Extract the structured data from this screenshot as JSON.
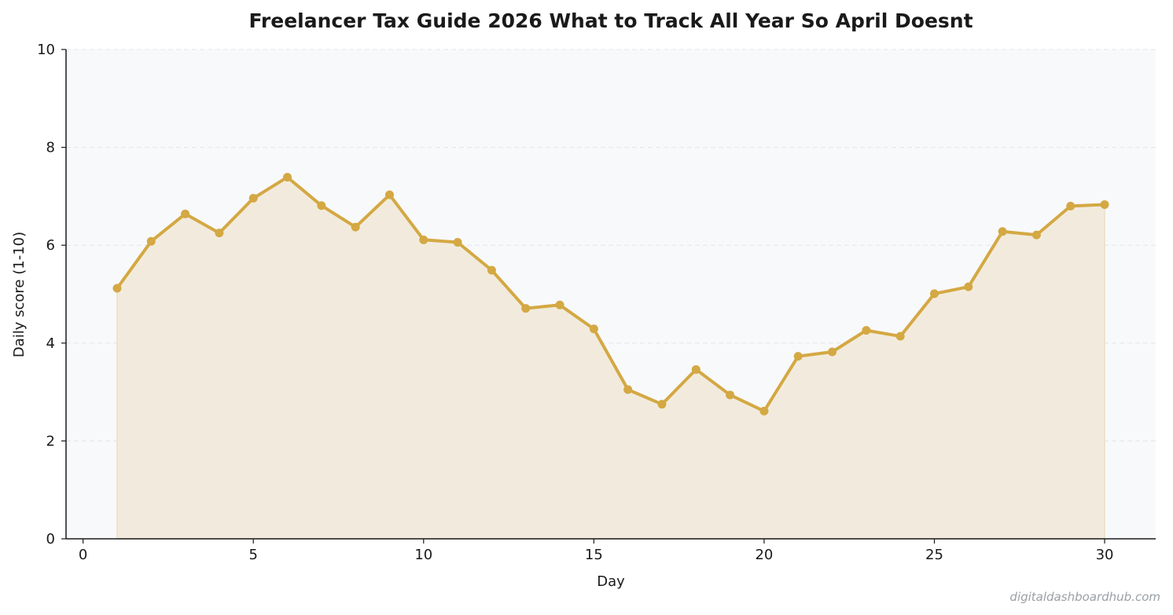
{
  "watermark": "digitaldashboardhub.com",
  "colors": {
    "line": "#d4a843",
    "fill": "#f2ebdd",
    "plot_bg": "#f8f9fb",
    "grid": "#e3e6ea"
  },
  "chart_data": {
    "type": "area",
    "title": "Freelancer Tax Guide 2026  What to Track All Year So April Doesnt",
    "xlabel": "Day",
    "ylabel": "Daily score (1-10)",
    "xlim": [
      -0.5,
      31.5
    ],
    "ylim": [
      0,
      10
    ],
    "x_ticks": [
      0,
      5,
      10,
      15,
      20,
      25,
      30
    ],
    "y_ticks": [
      0,
      2,
      4,
      6,
      8,
      10
    ],
    "grid": "horizontal dashed",
    "x": [
      1,
      2,
      3,
      4,
      5,
      6,
      7,
      8,
      9,
      10,
      11,
      12,
      13,
      14,
      15,
      16,
      17,
      18,
      19,
      20,
      21,
      22,
      23,
      24,
      25,
      26,
      27,
      28,
      29,
      30
    ],
    "y": [
      5.12,
      6.08,
      6.64,
      6.25,
      6.96,
      7.39,
      6.81,
      6.37,
      7.03,
      6.11,
      6.06,
      5.49,
      4.71,
      4.78,
      4.29,
      3.05,
      2.75,
      3.46,
      2.94,
      2.61,
      3.73,
      3.82,
      4.26,
      4.14,
      5.01,
      5.15,
      6.28,
      6.21,
      6.8,
      6.83
    ]
  }
}
